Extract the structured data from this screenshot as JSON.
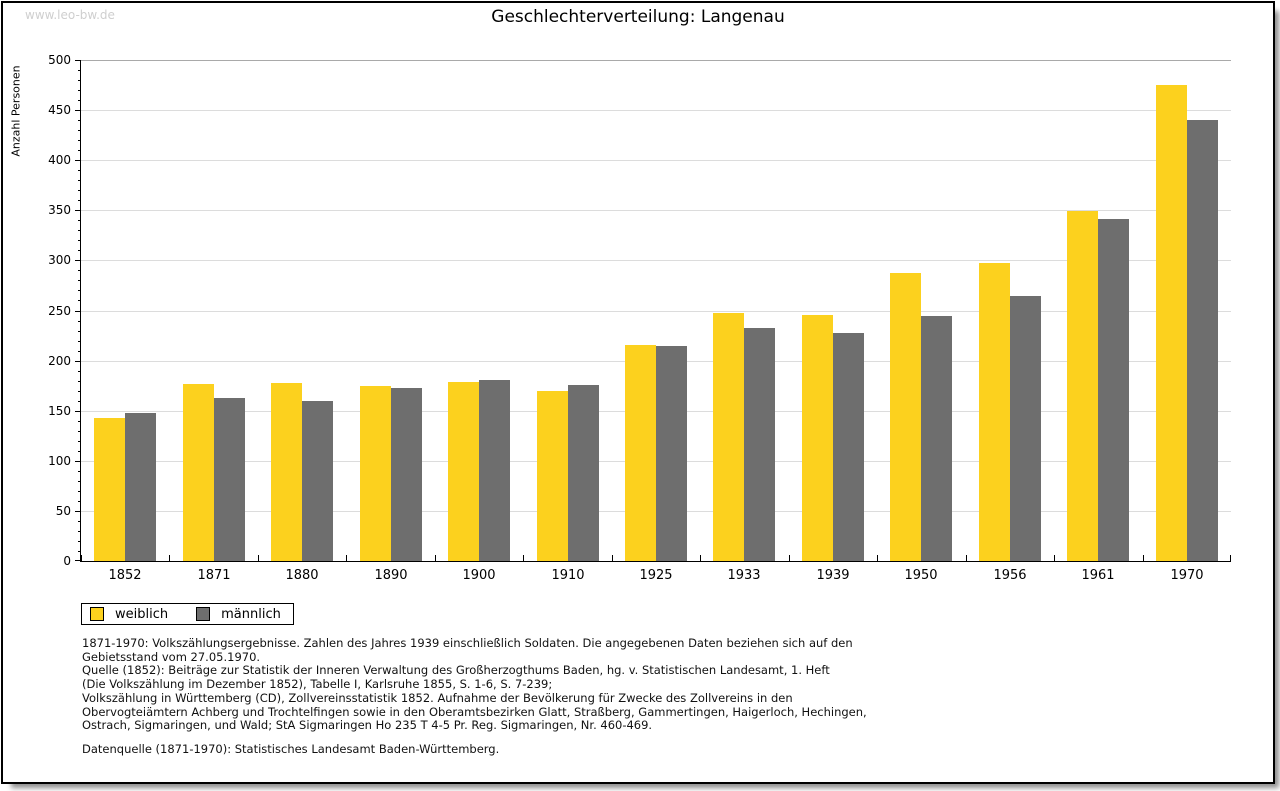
{
  "page": {
    "watermark": "www.leo-bw.de",
    "title": "Geschlechterverteilung: Langenau"
  },
  "chart_data": {
    "type": "bar",
    "title": "Geschlechterverteilung: Langenau",
    "xlabel": "",
    "ylabel": "Anzahl Personen",
    "ylim": [
      0,
      500
    ],
    "y_major_step": 50,
    "y_minor_step": 10,
    "grid": true,
    "legend_position": "bottom-left",
    "categories": [
      "1852",
      "1871",
      "1880",
      "1890",
      "1900",
      "1910",
      "1925",
      "1933",
      "1939",
      "1950",
      "1956",
      "1961",
      "1970"
    ],
    "series": [
      {
        "name": "weiblich",
        "color": "#fcd11e",
        "values": [
          143,
          177,
          178,
          175,
          179,
          170,
          216,
          248,
          246,
          287,
          297,
          349,
          475
        ]
      },
      {
        "name": "männlich",
        "color": "#6e6e6e",
        "values": [
          148,
          163,
          160,
          173,
          181,
          176,
          215,
          233,
          228,
          245,
          264,
          341,
          440
        ]
      }
    ]
  },
  "legend": {
    "items": [
      {
        "label": "weiblich",
        "color": "#fcd11e"
      },
      {
        "label": "männlich",
        "color": "#6e6e6e"
      }
    ]
  },
  "footnotes": {
    "lines": [
      "1871-1970: Volkszählungsergebnisse. Zahlen des Jahres 1939 einschließlich Soldaten. Die angegebenen Daten beziehen sich auf den",
      "Gebietsstand vom 27.05.1970.",
      "Quelle (1852): Beiträge zur Statistik der Inneren Verwaltung des Großherzogthums Baden, hg. v. Statistischen Landesamt, 1. Heft",
      "(Die Volkszählung im Dezember 1852), Tabelle I, Karlsruhe 1855, S. 1-6, S. 7-239;",
      "Volkszählung in Württemberg (CD), Zollvereinsstatistik 1852. Aufnahme der Bevölkerung für Zwecke des Zollvereins in den",
      "Obervogteiämtern Achberg und Trochtelfingen sowie in den Oberamtsbezirken Glatt, Straßberg, Gammertingen, Haigerloch, Hechingen,",
      "Ostrach, Sigmaringen, und Wald; StA Sigmaringen Ho 235 T 4-5 Pr. Reg. Sigmaringen, Nr. 460-469."
    ],
    "datasource": "Datenquelle (1871-1970): Statistisches Landesamt Baden-Württemberg."
  }
}
